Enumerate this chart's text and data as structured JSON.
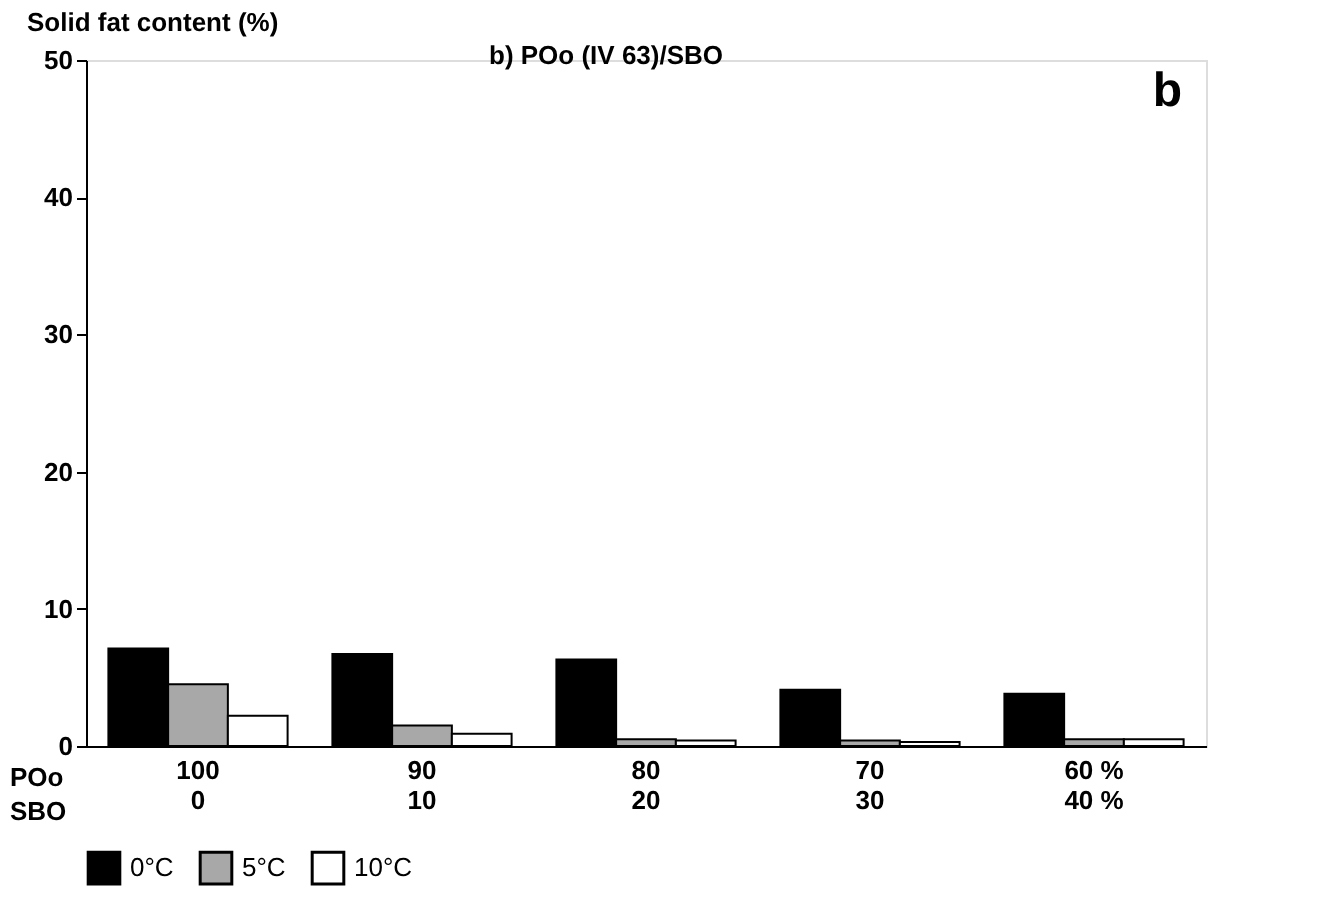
{
  "chart_data": {
    "type": "bar",
    "title": "b)  POo (IV 63)/SBO",
    "ylabel": "Solid fat content (%)",
    "categories": [
      "100\n0",
      "90\n10",
      "80\n20",
      "70\n30",
      "60  %\n40  %"
    ],
    "series": [
      {
        "name": "0°C",
        "color": "#000000",
        "values": [
          7.1,
          6.7,
          6.3,
          4.1,
          3.8
        ]
      },
      {
        "name": "5°C",
        "color": "#a8a8a8",
        "values": [
          4.5,
          1.5,
          0.5,
          0.4,
          0.5
        ]
      },
      {
        "name": "10°C",
        "color": "#ffffff",
        "values": [
          2.2,
          0.9,
          0.4,
          0.3,
          0.5
        ]
      }
    ],
    "ylim": [
      0,
      50
    ],
    "yticks": [
      0,
      10,
      20,
      30,
      40,
      50
    ],
    "grid": false,
    "legend": "bottom",
    "annotations": [
      "POo",
      "SBO",
      "b"
    ]
  }
}
